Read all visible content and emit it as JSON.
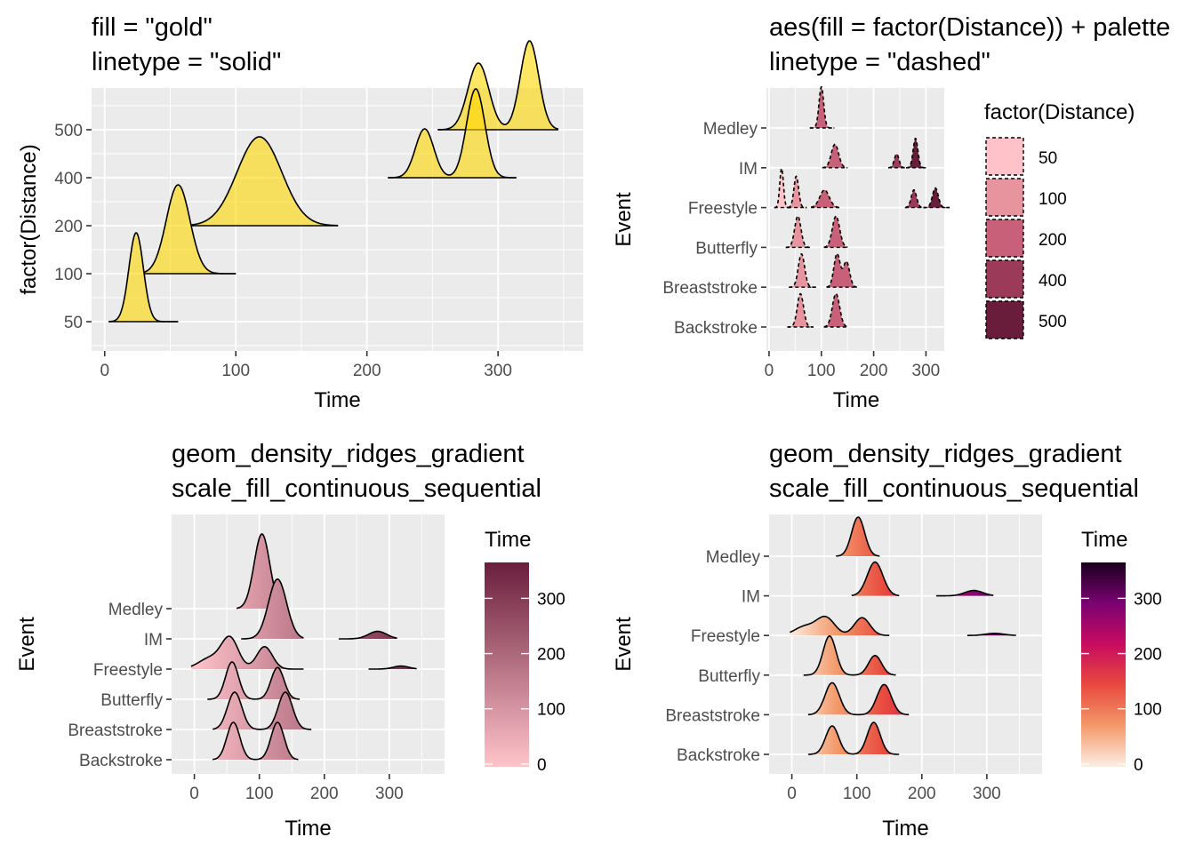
{
  "chart_data": [
    {
      "type": "ridgeline",
      "title_lines": [
        "fill = \"gold\"",
        "linetype = \"solid\""
      ],
      "xlabel": "Time",
      "ylabel": "factor(Distance)",
      "xlim": [
        -10,
        365
      ],
      "x_ticks": [
        0,
        100,
        200,
        300
      ],
      "categories": [
        "50",
        "100",
        "200",
        "400",
        "500"
      ],
      "fill": "#FFD700",
      "line_style": "solid",
      "series": [
        {
          "category": "50",
          "range": [
            3,
            56
          ],
          "peaks": [
            {
              "x": 24,
              "sd": 5.5,
              "h": 1.0
            }
          ]
        },
        {
          "category": "100",
          "range": [
            30,
            100
          ],
          "peaks": [
            {
              "x": 56,
              "sd": 9,
              "h": 1.0
            }
          ]
        },
        {
          "category": "200",
          "range": [
            66,
            178
          ],
          "peaks": [
            {
              "x": 118,
              "sd": 17,
              "h": 1.0
            }
          ]
        },
        {
          "category": "400",
          "range": [
            216,
            314
          ],
          "peaks": [
            {
              "x": 244,
              "sd": 7,
              "h": 0.55
            },
            {
              "x": 283,
              "sd": 7,
              "h": 1.0
            }
          ]
        },
        {
          "category": "500",
          "range": [
            254,
            346
          ],
          "peaks": [
            {
              "x": 285,
              "sd": 8,
              "h": 0.75
            },
            {
              "x": 324,
              "sd": 7,
              "h": 1.0
            }
          ]
        }
      ]
    },
    {
      "type": "ridgeline",
      "title_lines": [
        "aes(fill = factor(Distance)) + palette",
        "linetype = \"dashed\""
      ],
      "xlabel": "Time",
      "ylabel": "Event",
      "xlim": [
        -5,
        335
      ],
      "x_ticks": [
        0,
        100,
        200,
        300
      ],
      "categories": [
        "Backstroke",
        "Breaststroke",
        "Butterfly",
        "Freestyle",
        "IM",
        "Medley"
      ],
      "line_style": "dashed",
      "legend": {
        "title": "factor(Distance)",
        "position": "right",
        "entries": [
          {
            "label": "50",
            "color": "#FFC2C8"
          },
          {
            "label": "100",
            "color": "#E8949F"
          },
          {
            "label": "200",
            "color": "#C9607A"
          },
          {
            "label": "400",
            "color": "#9C3A5A"
          },
          {
            "label": "500",
            "color": "#6A1D3A"
          }
        ]
      },
      "series": [
        {
          "category": "Backstroke",
          "distance": "100",
          "range": [
            35,
            85
          ],
          "peaks": [
            {
              "x": 60,
              "sd": 6,
              "h": 0.85
            }
          ]
        },
        {
          "category": "Backstroke",
          "distance": "200",
          "range": [
            105,
            150
          ],
          "peaks": [
            {
              "x": 128,
              "sd": 7,
              "h": 0.85
            }
          ]
        },
        {
          "category": "Breaststroke",
          "distance": "100",
          "range": [
            38,
            90
          ],
          "peaks": [
            {
              "x": 62,
              "sd": 6,
              "h": 0.85
            }
          ]
        },
        {
          "category": "Breaststroke",
          "distance": "200",
          "range": [
            110,
            168
          ],
          "peaks": [
            {
              "x": 130,
              "sd": 6,
              "h": 0.85
            },
            {
              "x": 148,
              "sd": 6,
              "h": 0.65
            }
          ]
        },
        {
          "category": "Butterfly",
          "distance": "100",
          "range": [
            32,
            78
          ],
          "peaks": [
            {
              "x": 55,
              "sd": 6,
              "h": 0.8
            }
          ]
        },
        {
          "category": "Butterfly",
          "distance": "200",
          "range": [
            105,
            150
          ],
          "peaks": [
            {
              "x": 128,
              "sd": 7,
              "h": 0.8
            }
          ]
        },
        {
          "category": "Freestyle",
          "distance": "50",
          "range": [
            10,
            40
          ],
          "peaks": [
            {
              "x": 24,
              "sd": 3.5,
              "h": 1.0
            }
          ]
        },
        {
          "category": "Freestyle",
          "distance": "100",
          "range": [
            36,
            72
          ],
          "peaks": [
            {
              "x": 52,
              "sd": 4.5,
              "h": 0.8
            }
          ]
        },
        {
          "category": "Freestyle",
          "distance": "200",
          "range": [
            80,
            135
          ],
          "peaks": [
            {
              "x": 106,
              "sd": 9,
              "h": 0.45
            }
          ]
        },
        {
          "category": "Freestyle",
          "distance": "400",
          "range": [
            260,
            295
          ],
          "peaks": [
            {
              "x": 277,
              "sd": 5,
              "h": 0.45
            }
          ]
        },
        {
          "category": "Freestyle",
          "distance": "500",
          "range": [
            295,
            345
          ],
          "peaks": [
            {
              "x": 318,
              "sd": 5.5,
              "h": 0.5
            }
          ]
        },
        {
          "category": "IM",
          "distance": "200",
          "range": [
            102,
            150
          ],
          "peaks": [
            {
              "x": 126,
              "sd": 7,
              "h": 0.6
            }
          ]
        },
        {
          "category": "IM",
          "distance": "400",
          "range": [
            228,
            260
          ],
          "peaks": [
            {
              "x": 244,
              "sd": 4.5,
              "h": 0.35
            }
          ]
        },
        {
          "category": "IM",
          "distance": "500",
          "range": [
            262,
            300
          ],
          "peaks": [
            {
              "x": 280,
              "sd": 4.5,
              "h": 0.75
            }
          ]
        },
        {
          "category": "Medley",
          "distance": "200",
          "range": [
            78,
            125
          ],
          "peaks": [
            {
              "x": 100,
              "sd": 4.5,
              "h": 1.05
            }
          ]
        }
      ]
    },
    {
      "type": "ridgeline",
      "title_lines": [
        "geom_density_ridges_gradient",
        "scale_fill_continuous_sequential"
      ],
      "xlabel": "Time",
      "ylabel": "Event",
      "xlim": [
        -35,
        385
      ],
      "x_ticks": [
        0,
        100,
        200,
        300
      ],
      "categories": [
        "Backstroke",
        "Breaststroke",
        "Butterfly",
        "Freestyle",
        "IM",
        "Medley"
      ],
      "fill_scale": {
        "title": "Time",
        "limits": [
          -5,
          365
        ],
        "ticks": [
          0,
          100,
          200,
          300
        ],
        "low_color": "#FFC4CA",
        "high_color": "#6A1E3C",
        "position": "right"
      },
      "series": [
        {
          "category": "Backstroke",
          "range": [
            28,
            160
          ],
          "peaks": [
            {
              "x": 60,
              "sd": 10,
              "h": 1.0
            },
            {
              "x": 128,
              "sd": 10,
              "h": 1.0
            }
          ]
        },
        {
          "category": "Breaststroke",
          "range": [
            28,
            180
          ],
          "peaks": [
            {
              "x": 62,
              "sd": 11,
              "h": 1.0
            },
            {
              "x": 140,
              "sd": 11,
              "h": 1.0
            }
          ]
        },
        {
          "category": "Butterfly",
          "range": [
            20,
            162
          ],
          "peaks": [
            {
              "x": 58,
              "sd": 10,
              "h": 1.0
            },
            {
              "x": 128,
              "sd": 10,
              "h": 0.85
            }
          ]
        },
        {
          "category": "Freestyle",
          "range": [
            -5,
            168
          ],
          "peaks": [
            {
              "x": 55,
              "sd": 13,
              "h": 0.8
            },
            {
              "x": 108,
              "sd": 12,
              "h": 0.6
            },
            {
              "x": 25,
              "sd": 18,
              "h": 0.3
            }
          ]
        },
        {
          "category": "IM",
          "range": [
            72,
            168
          ],
          "peaks": [
            {
              "x": 128,
              "sd": 14,
              "h": 1.6
            }
          ]
        },
        {
          "category": "Medley",
          "range": [
            65,
            135
          ],
          "peaks": [
            {
              "x": 104,
              "sd": 12,
              "h": 2.0
            }
          ]
        },
        {
          "category": "IM",
          "range": [
            222,
            312
          ],
          "peaks": [
            {
              "x": 282,
              "sd": 14,
              "h": 0.2
            }
          ]
        },
        {
          "category": "Freestyle",
          "range": [
            268,
            342
          ],
          "peaks": [
            {
              "x": 318,
              "sd": 12,
              "h": 0.08
            }
          ]
        }
      ]
    },
    {
      "type": "ridgeline",
      "title_lines": [
        "geom_density_ridges_gradient",
        "scale_fill_continuous_sequential"
      ],
      "xlabel": "Time",
      "ylabel": "Event",
      "xlim": [
        -35,
        385
      ],
      "x_ticks": [
        0,
        100,
        200,
        300
      ],
      "categories": [
        "Backstroke",
        "Breaststroke",
        "Butterfly",
        "Freestyle",
        "IM",
        "Medley"
      ],
      "fill_scale": {
        "title": "Time",
        "limits": [
          -5,
          365
        ],
        "ticks": [
          0,
          100,
          200,
          300
        ],
        "stops": [
          "#FCEDE3",
          "#F39A6B",
          "#E8493E",
          "#C80C60",
          "#7A0272",
          "#1A001E"
        ],
        "position": "right"
      },
      "series": [
        {
          "category": "Backstroke",
          "range": [
            25,
            165
          ],
          "peaks": [
            {
              "x": 62,
              "sd": 10,
              "h": 0.8
            },
            {
              "x": 126,
              "sd": 10,
              "h": 0.9
            }
          ]
        },
        {
          "category": "Breaststroke",
          "range": [
            25,
            180
          ],
          "peaks": [
            {
              "x": 62,
              "sd": 11,
              "h": 0.9
            },
            {
              "x": 142,
              "sd": 11,
              "h": 0.85
            }
          ]
        },
        {
          "category": "Butterfly",
          "range": [
            18,
            160
          ],
          "peaks": [
            {
              "x": 58,
              "sd": 10,
              "h": 1.1
            },
            {
              "x": 128,
              "sd": 10,
              "h": 0.55
            }
          ]
        },
        {
          "category": "Freestyle",
          "range": [
            -3,
            150
          ],
          "peaks": [
            {
              "x": 52,
              "sd": 14,
              "h": 0.5
            },
            {
              "x": 108,
              "sd": 12,
              "h": 0.5
            },
            {
              "x": 20,
              "sd": 16,
              "h": 0.25
            }
          ]
        },
        {
          "category": "Freestyle",
          "range": [
            270,
            345
          ],
          "peaks": [
            {
              "x": 312,
              "sd": 14,
              "h": 0.06
            }
          ]
        },
        {
          "category": "IM",
          "range": [
            92,
            165
          ],
          "peaks": [
            {
              "x": 128,
              "sd": 12,
              "h": 0.95
            }
          ]
        },
        {
          "category": "IM",
          "range": [
            222,
            310
          ],
          "peaks": [
            {
              "x": 280,
              "sd": 14,
              "h": 0.15
            }
          ]
        },
        {
          "category": "Medley",
          "range": [
            68,
            135
          ],
          "peaks": [
            {
              "x": 102,
              "sd": 10,
              "h": 1.1
            }
          ]
        }
      ]
    }
  ]
}
